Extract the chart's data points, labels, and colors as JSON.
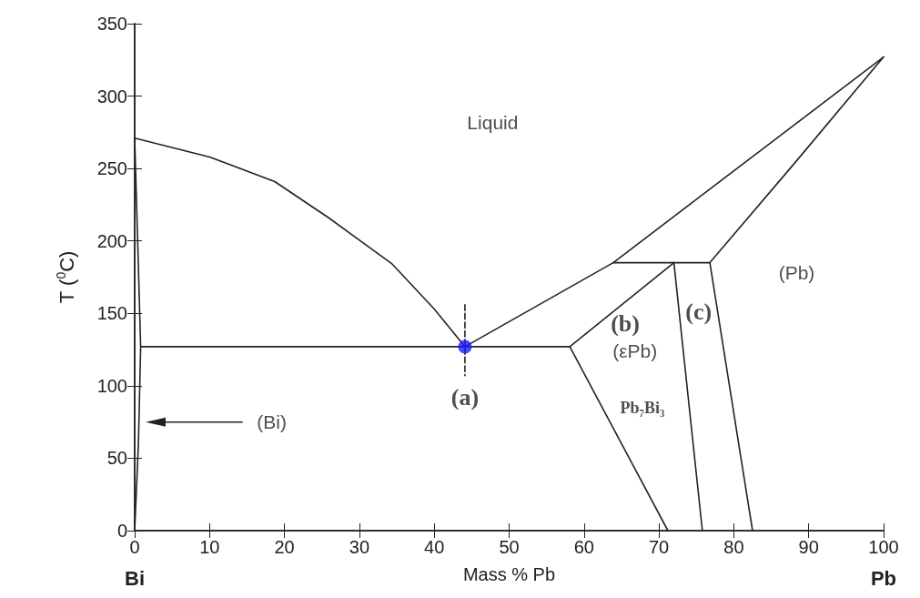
{
  "chart_data": {
    "type": "line",
    "xlabel": "Mass % Pb",
    "ylabel": "T ($^{0}$C)",
    "xlim": [
      0,
      100
    ],
    "xticks": [
      0,
      10,
      20,
      30,
      40,
      50,
      60,
      70,
      80,
      90,
      100
    ],
    "ylim": [
      0,
      350
    ],
    "yticks": [
      0,
      50,
      100,
      150,
      200,
      250,
      300,
      350
    ],
    "grid": false,
    "marker": "none",
    "line_style": "solid",
    "series": [
      {
        "color": "#222222",
        "x": [
          0,
          10,
          18.7,
          25.9,
          34.4,
          40,
          44.1
        ],
        "values": [
          271,
          258,
          241,
          216,
          184,
          153,
          127
        ]
      },
      {
        "color": "#222222",
        "x": [
          44.1,
          63.9,
          100
        ],
        "values": [
          127,
          185,
          327
        ]
      },
      {
        "color": "#222222",
        "x": [
          76.8,
          88,
          100
        ],
        "values": [
          185,
          253,
          327
        ]
      },
      {
        "color": "#222222",
        "x": [
          63.9,
          76.8
        ],
        "values": [
          185,
          185
        ]
      },
      {
        "color": "#222222",
        "x": [
          0.8,
          58.1
        ],
        "values": [
          127,
          127
        ]
      },
      {
        "color": "#222222",
        "x": [
          71.2,
          58.1,
          72
        ],
        "values": [
          0,
          127,
          185
        ]
      },
      {
        "color": "#222222",
        "x": [
          72,
          75.8
        ],
        "values": [
          185,
          0
        ]
      },
      {
        "color": "#222222",
        "x": [
          76.8,
          82.5
        ],
        "values": [
          185,
          0
        ]
      },
      {
        "color": "#222222",
        "x": [
          0,
          0.4,
          0.8,
          0.5,
          0
        ],
        "values": [
          271,
          200,
          127,
          60,
          0
        ]
      },
      {
        "color": "#222222",
        "line_style": "dashed",
        "x": [
          44.1,
          44.1
        ],
        "values": [
          156,
          107
        ]
      },
      {
        "type": "scatter",
        "marker": "circle",
        "color": "#1a1aff",
        "x": [
          44.1
        ],
        "values": [
          127
        ]
      }
    ],
    "annotations": [
      "Liquid",
      "(Pb)",
      "(b)",
      "(c)",
      "(εPb)",
      "(a)",
      "Pb₇Bi₃",
      "(Bi)",
      "Bi",
      "Pb"
    ]
  }
}
